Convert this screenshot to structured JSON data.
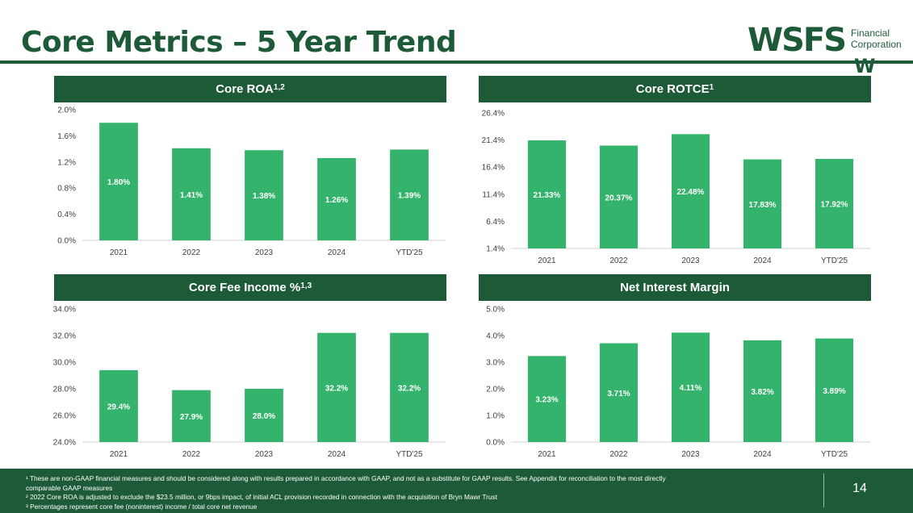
{
  "page": {
    "title": "Core Metrics – 5 Year Trend",
    "page_number": "14",
    "colors": {
      "brand": "#1d5a37",
      "bar": "#33b36b",
      "axis_text": "#404040"
    }
  },
  "logo": {
    "main": "WSFS",
    "sub_line1": "Financial",
    "sub_line2": "Corporation",
    "mark": "W"
  },
  "charts": [
    {
      "id": "core-roa",
      "title": "Core ROA",
      "superscript": "1,2"
    },
    {
      "id": "core-rotce",
      "title": "Core ROTCE",
      "superscript": "1"
    },
    {
      "id": "core-fee-income",
      "title": "Core Fee Income %",
      "superscript": "1,3"
    },
    {
      "id": "net-interest-margin",
      "title": "Net Interest Margin",
      "superscript": ""
    }
  ],
  "chart_data": [
    {
      "type": "bar",
      "title": "Core ROA1,2",
      "categories": [
        "2021",
        "2022",
        "2023",
        "2024",
        "YTD'25"
      ],
      "values": [
        1.8,
        1.41,
        1.38,
        1.26,
        1.39
      ],
      "value_labels": [
        "1.80%",
        "1.41%",
        "1.38%",
        "1.26%",
        "1.39%"
      ],
      "ylim": [
        0.0,
        2.0
      ],
      "yticks": [
        0.0,
        0.4,
        0.8,
        1.2,
        1.6,
        2.0
      ],
      "ytick_labels": [
        "0.0%",
        "0.4%",
        "0.8%",
        "1.2%",
        "1.6%",
        "2.0%"
      ],
      "xlabel": "",
      "ylabel": ""
    },
    {
      "type": "bar",
      "title": "Core ROTCE1",
      "categories": [
        "2021",
        "2022",
        "2023",
        "2024",
        "YTD'25"
      ],
      "values": [
        21.33,
        20.37,
        22.48,
        17.83,
        17.92
      ],
      "value_labels": [
        "21.33%",
        "20.37%",
        "22.48%",
        "17.83%",
        "17.92%"
      ],
      "ylim": [
        1.4,
        26.4
      ],
      "yticks": [
        1.4,
        6.4,
        11.4,
        16.4,
        21.4,
        26.4
      ],
      "ytick_labels": [
        "1.4%",
        "6.4%",
        "11.4%",
        "16.4%",
        "21.4%",
        "26.4%"
      ],
      "xlabel": "",
      "ylabel": ""
    },
    {
      "type": "bar",
      "title": "Core Fee Income %1,3",
      "categories": [
        "2021",
        "2022",
        "2023",
        "2024",
        "YTD'25"
      ],
      "values": [
        29.4,
        27.9,
        28.0,
        32.2,
        32.2
      ],
      "value_labels": [
        "29.4%",
        "27.9%",
        "28.0%",
        "32.2%",
        "32.2%"
      ],
      "ylim": [
        24.0,
        34.0
      ],
      "yticks": [
        24.0,
        26.0,
        28.0,
        30.0,
        32.0,
        34.0
      ],
      "ytick_labels": [
        "24.0%",
        "26.0%",
        "28.0%",
        "30.0%",
        "32.0%",
        "34.0%"
      ],
      "xlabel": "",
      "ylabel": ""
    },
    {
      "type": "bar",
      "title": "Net Interest Margin",
      "categories": [
        "2021",
        "2022",
        "2023",
        "2024",
        "YTD'25"
      ],
      "values": [
        3.23,
        3.71,
        4.11,
        3.82,
        3.89
      ],
      "value_labels": [
        "3.23%",
        "3.71%",
        "4.11%",
        "3.82%",
        "3.89%"
      ],
      "ylim": [
        0.0,
        5.0
      ],
      "yticks": [
        0.0,
        1.0,
        2.0,
        3.0,
        4.0,
        5.0
      ],
      "ytick_labels": [
        "0.0%",
        "1.0%",
        "2.0%",
        "3.0%",
        "4.0%",
        "5.0%"
      ],
      "xlabel": "",
      "ylabel": ""
    }
  ],
  "footnotes": [
    "¹ These are non-GAAP financial measures and should be considered along with results prepared in accordance with GAAP, and not as a substitute for GAAP results. See Appendix for reconciliation to the most directly",
    "comparable GAAP measures",
    "² 2022 Core ROA is adjusted to exclude the $23.5 million, or 9bps impact, of initial ACL provision recorded in connection with the acquisition of Bryn Mawr Trust",
    "³ Percentages represent core fee (noninterest) income / total core net revenue"
  ]
}
